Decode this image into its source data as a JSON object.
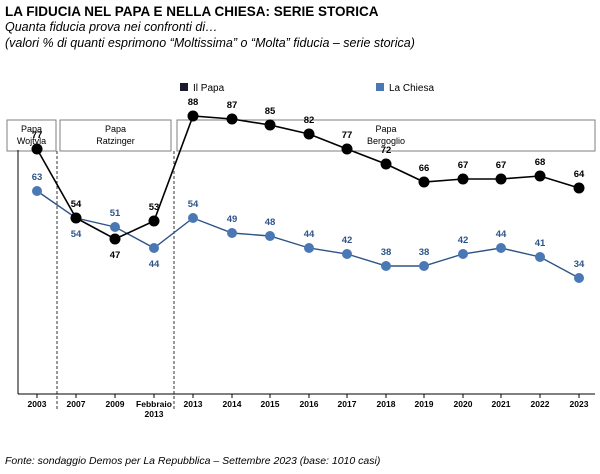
{
  "header": {
    "title": "LA FIDUCIA NEL PAPA E NELLA CHIESA: SERIE STORICA",
    "subtitle1": "Quanta fiducia prova nei confronti di…",
    "subtitle2": "(valori % di quanti esprimono “Moltissima” o “Molta” fiducia – serie storica)"
  },
  "source": "Fonte: sondaggio Demos per La Repubblica – Settembre 2023 (base: 1010 casi)",
  "chart_data": {
    "type": "line",
    "categories": [
      "2003",
      "2007",
      "2009",
      "Febbraio 2013",
      "2013",
      "2014",
      "2015",
      "2016",
      "2017",
      "2018",
      "2019",
      "2020",
      "2021",
      "2022",
      "2023"
    ],
    "series": [
      {
        "name": "Il Papa",
        "color": "#000000",
        "values": [
          77,
          54,
          47,
          53,
          88,
          87,
          85,
          82,
          77,
          72,
          66,
          67,
          67,
          68,
          64
        ]
      },
      {
        "name": "La Chiesa",
        "color": "#2E5487",
        "values": [
          63,
          54,
          51,
          44,
          54,
          49,
          48,
          44,
          42,
          38,
          38,
          42,
          44,
          41,
          34
        ]
      }
    ],
    "eras": [
      {
        "line1": "Papa",
        "line2": "Wojtyla"
      },
      {
        "line1": "Papa",
        "line2": "Ratzinger"
      },
      {
        "line1": "Papa",
        "line2": "Bergoglio"
      }
    ],
    "legend": [
      "Il Papa",
      "La Chiesa"
    ],
    "ylim": [
      0,
      100
    ],
    "grid": false,
    "legend_position": "top"
  }
}
